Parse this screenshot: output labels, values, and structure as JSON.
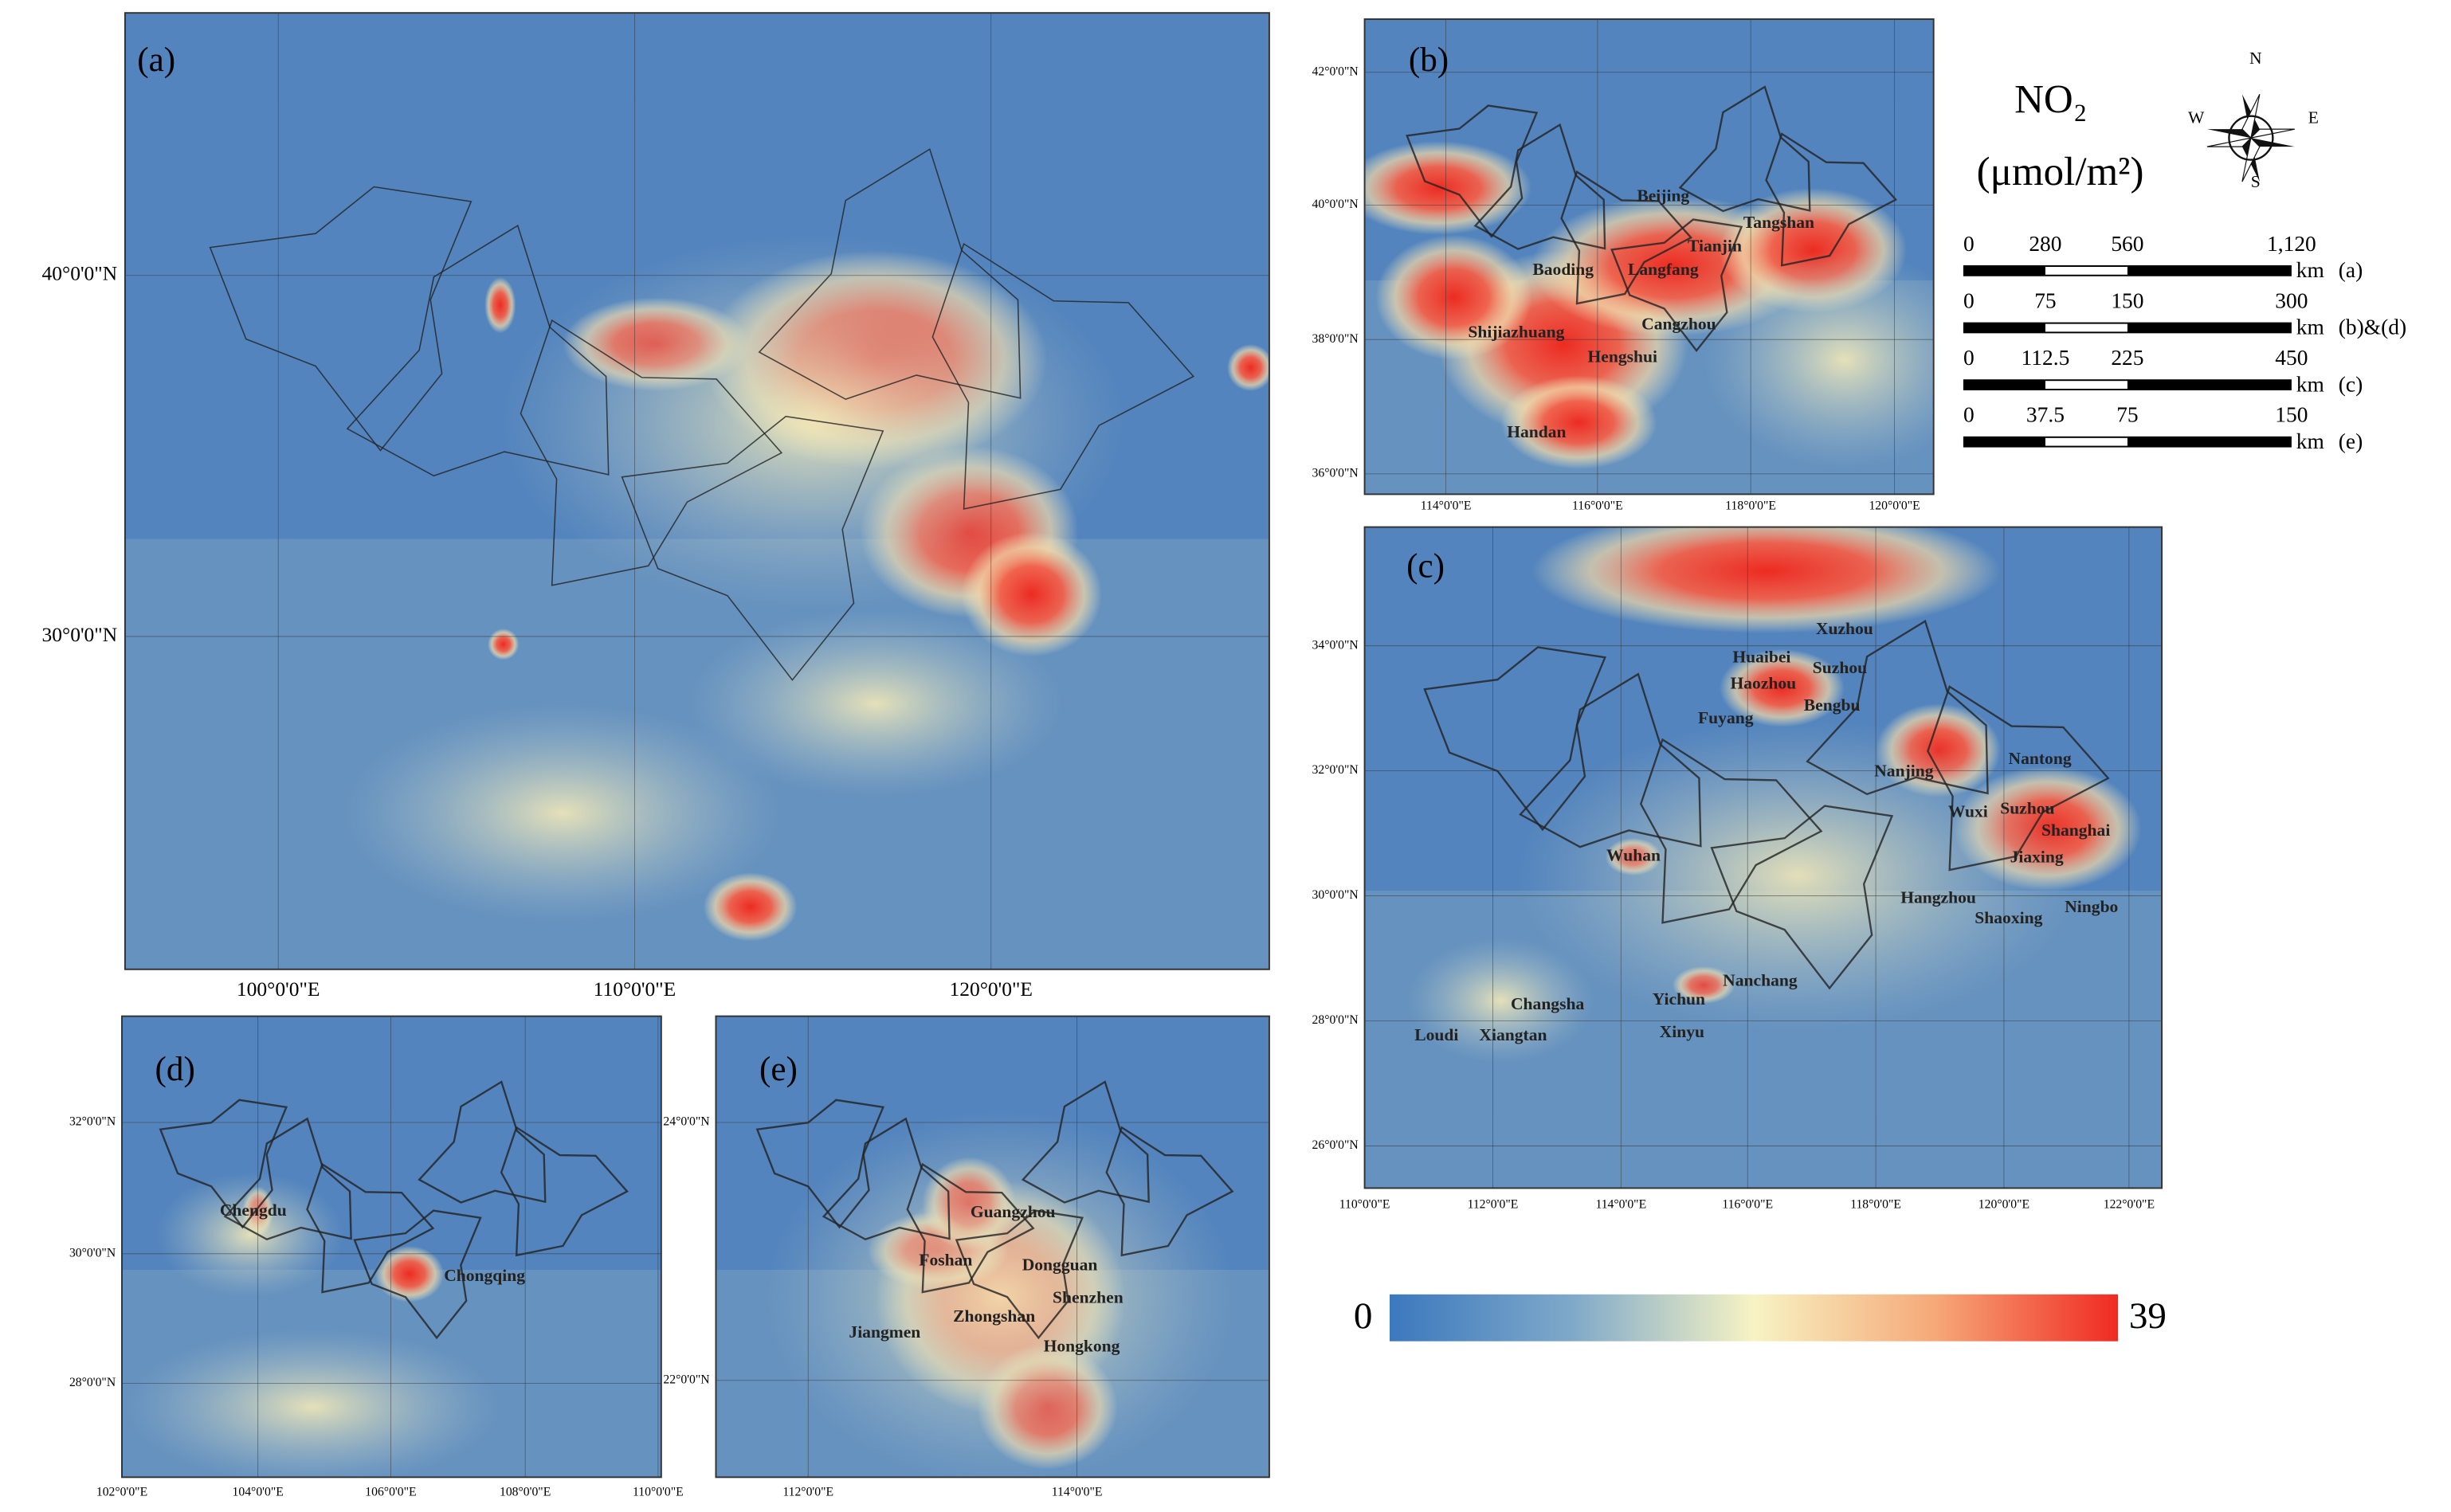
{
  "panels": [
    {
      "label": "(a)",
      "yticks": [
        "40°0'0\"N",
        "30°0'0\"N"
      ],
      "xticks": [
        "100°0'0\"E",
        "110°0'0\"E",
        "120°0'0\"E"
      ],
      "cities": []
    },
    {
      "label": "(b)",
      "yticks": [
        "42°0'0\"N",
        "40°0'0\"N",
        "38°0'0\"N",
        "36°0'0\"N"
      ],
      "xticks": [
        "114°0'0\"E",
        "116°0'0\"E",
        "118°0'0\"E",
        "120°0'0\"E"
      ],
      "cities": [
        "Beijing",
        "Tangshan",
        "Tianjin",
        "Baoding",
        "Langfang",
        "Cangzhou",
        "Shijiazhuang",
        "Hengshui",
        "Handan"
      ]
    },
    {
      "label": "(c)",
      "yticks": [
        "34°0'0\"N",
        "32°0'0\"N",
        "30°0'0\"N",
        "28°0'0\"N",
        "26°0'0\"N"
      ],
      "xticks": [
        "110°0'0\"E",
        "112°0'0\"E",
        "114°0'0\"E",
        "116°0'0\"E",
        "118°0'0\"E",
        "120°0'0\"E",
        "122°0'0\"E"
      ],
      "cities": [
        "Xuzhou",
        "Huaibei",
        "Suzhou",
        "Haozhou",
        "Bengbu",
        "Fuyang",
        "Nanjing",
        "Nantong",
        "Wuxi",
        "Suzhou",
        "Shanghai",
        "Jiaxing",
        "Wuhan",
        "Hangzhou",
        "Shaoxing",
        "Ningbo",
        "Nanchang",
        "Yichun",
        "Xinyu",
        "Changsha",
        "Loudi",
        "Xiangtan"
      ]
    },
    {
      "label": "(d)",
      "yticks": [
        "32°0'0\"N",
        "30°0'0\"N",
        "28°0'0\"N"
      ],
      "xticks": [
        "102°0'0\"E",
        "104°0'0\"E",
        "106°0'0\"E",
        "108°0'0\"E",
        "110°0'0\"E"
      ],
      "cities": [
        "Chengdu",
        "Chongqing"
      ]
    },
    {
      "label": "(e)",
      "yticks": [
        "24°0'0\"N",
        "22°0'0\"N"
      ],
      "xticks": [
        "112°0'0\"E",
        "114°0'0\"E"
      ],
      "cities": [
        "Guangzhou",
        "Foshan",
        "Dongguan",
        "Shenzhen",
        "Jiangmen",
        "Zhongshan",
        "Hongkong"
      ]
    }
  ],
  "legend": {
    "title": "NO₂",
    "unit": "(μmol/m²)",
    "compass": {
      "north": "N",
      "south": "S",
      "east": "E",
      "west": "W"
    },
    "scale_bars": [
      {
        "ticks": [
          "0",
          "280",
          "560",
          "1,120"
        ],
        "unit": "km",
        "panels": "(a)"
      },
      {
        "ticks": [
          "0",
          "75",
          "150",
          "300"
        ],
        "unit": "km",
        "panels": "(b)&(d)"
      },
      {
        "ticks": [
          "0",
          "112.5",
          "225",
          "450"
        ],
        "unit": "km",
        "panels": "(c)"
      },
      {
        "ticks": [
          "0",
          "37.5",
          "75",
          "150"
        ],
        "unit": "km",
        "panels": "(e)"
      }
    ],
    "colorbar": {
      "min": 0,
      "max": 39
    }
  }
}
